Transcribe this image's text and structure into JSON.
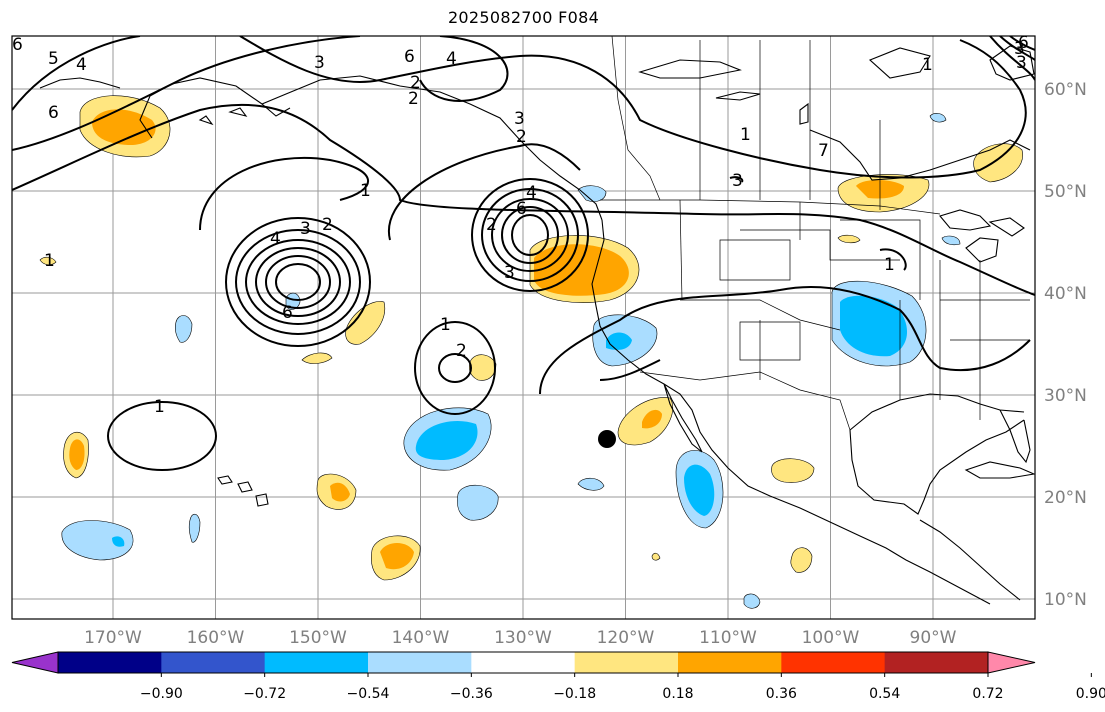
{
  "title": "2025082700 F084",
  "map": {
    "region": "North Pacific and North America",
    "lon_labels": [
      "170°W",
      "160°W",
      "150°W",
      "140°W",
      "130°W",
      "120°W",
      "110°W",
      "100°W",
      "90°W"
    ],
    "lat_labels": [
      "60°N",
      "50°N",
      "40°N",
      "30°N",
      "20°N",
      "10°N"
    ],
    "marker": {
      "lon": -122,
      "lat": 25.7,
      "label": "point marker"
    },
    "contour_labels": [
      "6",
      "5",
      "4",
      "6",
      "4",
      "3",
      "1",
      "2",
      "1",
      "6",
      "7",
      "3",
      "2",
      "4",
      "3",
      "2",
      "6",
      "1",
      "2",
      "1",
      "3",
      "2",
      "1",
      "4",
      "6",
      "3",
      "2",
      "3",
      "1",
      "3",
      "1",
      "6"
    ]
  },
  "colorbar": {
    "colors": [
      "#9933cc",
      "#000088",
      "#3355cc",
      "#00bbff",
      "#aaddff",
      "#ffffff",
      "#ffe680",
      "#ffa500",
      "#ff3300",
      "#b22222",
      "#ff88aa"
    ],
    "tick_labels": [
      "−0.90",
      "−0.72",
      "−0.54",
      "−0.36",
      "−0.18",
      "0.18",
      "0.36",
      "0.54",
      "0.72",
      "0.90"
    ]
  }
}
